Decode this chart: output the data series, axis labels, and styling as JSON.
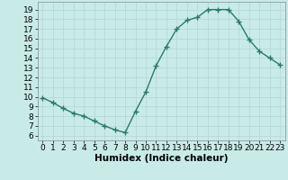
{
  "x": [
    0,
    1,
    2,
    3,
    4,
    5,
    6,
    7,
    8,
    9,
    10,
    11,
    12,
    13,
    14,
    15,
    16,
    17,
    18,
    19,
    20,
    21,
    22,
    23
  ],
  "y": [
    9.9,
    9.4,
    8.8,
    8.3,
    8.0,
    7.5,
    7.0,
    6.6,
    6.3,
    8.5,
    10.5,
    13.2,
    15.2,
    17.0,
    17.9,
    18.2,
    19.0,
    19.0,
    19.0,
    17.8,
    15.9,
    14.7,
    14.0,
    13.3
  ],
  "line_color": "#2a7a6a",
  "marker": "+",
  "marker_size": 4,
  "bg_color": "#c8ebe8",
  "grid_color": "#b8d8d4",
  "xlabel": "Humidex (Indice chaleur)",
  "ylim": [
    5.5,
    19.8
  ],
  "xlim": [
    -0.5,
    23.5
  ],
  "yticks": [
    6,
    7,
    8,
    9,
    10,
    11,
    12,
    13,
    14,
    15,
    16,
    17,
    18,
    19
  ],
  "xticks": [
    0,
    1,
    2,
    3,
    4,
    5,
    6,
    7,
    8,
    9,
    10,
    11,
    12,
    13,
    14,
    15,
    16,
    17,
    18,
    19,
    20,
    21,
    22,
    23
  ],
  "xlabel_fontsize": 7.5,
  "tick_fontsize": 6.5,
  "line_width": 1.0
}
